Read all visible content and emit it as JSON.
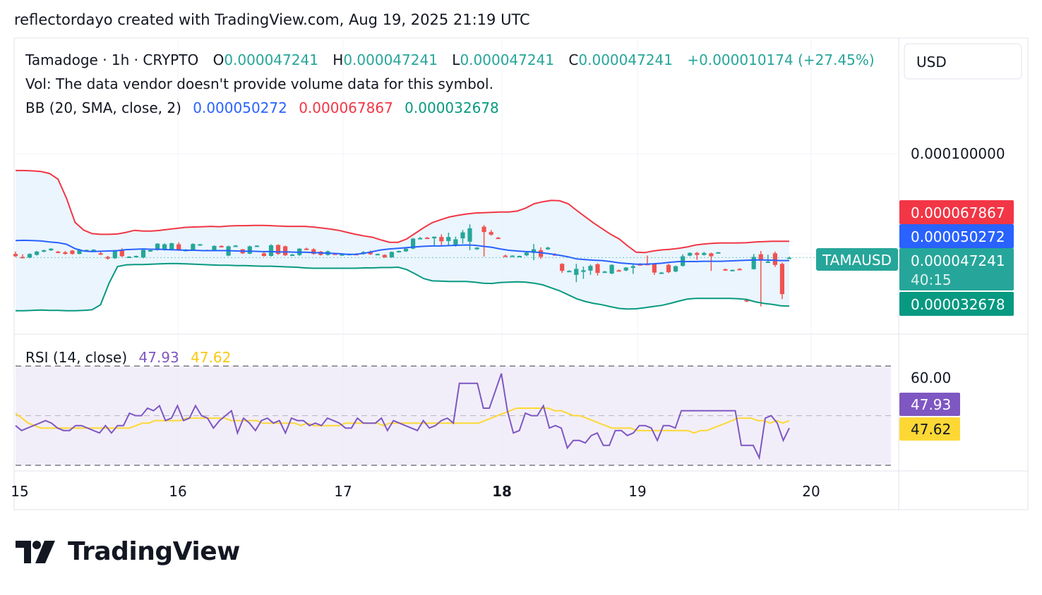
{
  "header": {
    "attribution": "reflectordayo created with TradingView.com, Aug 19, 2025 21:19 UTC"
  },
  "legend": {
    "symbol": "Tamadoge · 1h · CRYPTO",
    "o_label": "O",
    "o_value": "0.000047241",
    "h_label": "H",
    "h_value": "0.000047241",
    "l_label": "L",
    "l_value": "0.000047241",
    "c_label": "C",
    "c_value": "0.000047241",
    "change": "+0.000010174 (+27.45%)",
    "volume_note": "Vol: The data vendor doesn't provide volume data for this symbol.",
    "bb_label": "BB (20, SMA, close, 2)",
    "bb_basis": "0.000050272",
    "bb_upper": "0.000067867",
    "bb_lower": "0.000032678",
    "rsi_label": "RSI (14, close)",
    "rsi_value": "47.93",
    "rsi_ma_value": "47.62"
  },
  "price_axis": {
    "currency": "USD",
    "tick": "0.000100000",
    "upper_tag": "0.000067867",
    "basis_tag": "0.000050272",
    "price_tag": "0.000047241",
    "countdown": "40:15",
    "lower_tag": "0.000032678",
    "symbol_tag": "TAMAUSD"
  },
  "rsi_axis": {
    "tick": "60.00",
    "rsi_tag": "47.93",
    "ma_tag": "47.62"
  },
  "time_axis": {
    "labels": [
      "15",
      "16",
      "17",
      "18",
      "19",
      "20"
    ],
    "bold_label": "18"
  },
  "colors": {
    "up": "#26a69a",
    "down": "#ef5350",
    "basis": "#2962ff",
    "upper": "#f23645",
    "lower": "#089981",
    "band_fill": "#e3f2fd",
    "rsi": "#7e57c2",
    "rsi_ma": "#fdd835",
    "rsi_fill": "#ede7f6",
    "grid": "#f0f3fa"
  },
  "chart_data": {
    "type": "candlestick",
    "title": "Tamadoge · 1h · CRYPTO",
    "interval": "1h",
    "x_start": "Aug 15",
    "x_labels": [
      "15",
      "16",
      "17",
      "18",
      "19",
      "20"
    ],
    "price_unit": "USD",
    "price_ylim": [
      2.5e-05,
      0.000112
    ],
    "candles": [
      [
        4.83e-05,
        4.9e-05,
        4.74e-05,
        4.76e-05
      ],
      [
        4.74e-05,
        4.82e-05,
        4.7e-05,
        4.72e-05
      ],
      [
        4.72e-05,
        4.85e-05,
        4.7e-05,
        4.83e-05
      ],
      [
        4.8e-05,
        4.92e-05,
        4.78e-05,
        4.9e-05
      ],
      [
        4.9e-05,
        4.96e-05,
        4.88e-05,
        4.94e-05
      ],
      [
        4.94e-05,
        5e-05,
        4.92e-05,
        4.99e-05
      ],
      [
        4.9e-05,
        4.92e-05,
        4.85e-05,
        4.88e-05
      ],
      [
        4.88e-05,
        4.92e-05,
        4.81e-05,
        4.83e-05
      ],
      [
        4.93e-05,
        4.95e-05,
        4.81e-05,
        4.83e-05
      ],
      [
        4.83e-05,
        4.98e-05,
        4.82e-05,
        4.96e-05
      ],
      [
        4.94e-05,
        4.96e-05,
        4.93e-05,
        4.95e-05
      ],
      [
        4.94e-05,
        4.97e-05,
        4.93e-05,
        4.96e-05
      ],
      [
        4.85e-05,
        4.9e-05,
        4.8e-05,
        4.82e-05
      ],
      [
        4.74e-05,
        4.77e-05,
        4.66e-05,
        4.69e-05
      ],
      [
        4.7e-05,
        4.95e-05,
        4.68e-05,
        4.94e-05
      ],
      [
        4.93e-05,
        5e-05,
        4.74e-05,
        4.76e-05
      ],
      [
        4.74e-05,
        4.76e-05,
        4.72e-05,
        4.75e-05
      ],
      [
        4.75e-05,
        4.78e-05,
        4.74e-05,
        4.77e-05
      ],
      [
        4.72e-05,
        4.98e-05,
        4.7e-05,
        4.95e-05
      ],
      [
        4.93e-05,
        4.98e-05,
        4.91e-05,
        4.94e-05
      ],
      [
        4.95e-05,
        5.15e-05,
        4.93e-05,
        5.14e-05
      ],
      [
        4.95e-05,
        5.15e-05,
        4.93e-05,
        5.12e-05
      ],
      [
        4.95e-05,
        5.17e-05,
        4.93e-05,
        5.15e-05
      ],
      [
        5.12e-05,
        5.18e-05,
        4.92e-05,
        4.94e-05
      ],
      [
        4.94e-05,
        4.98e-05,
        4.92e-05,
        4.95e-05
      ],
      [
        4.96e-05,
        5.15e-05,
        4.94e-05,
        5.13e-05
      ],
      [
        5.11e-05,
        5.13e-05,
        5.09e-05,
        5.12e-05
      ],
      [
        4.93e-05,
        4.96e-05,
        4.91e-05,
        4.95e-05
      ],
      [
        4.95e-05,
        5.09e-05,
        4.93e-05,
        5.07e-05
      ],
      [
        5.07e-05,
        5.09e-05,
        5.05e-05,
        5.06e-05
      ],
      [
        4.78e-05,
        5.08e-05,
        4.76e-05,
        5.06e-05
      ],
      [
        5.06e-05,
        5.1e-05,
        5.04e-05,
        5.08e-05
      ],
      [
        4.97e-05,
        4.98e-05,
        4.83e-05,
        4.85e-05
      ],
      [
        4.84e-05,
        5.08e-05,
        4.82e-05,
        5.06e-05
      ],
      [
        5.06e-05,
        5.09e-05,
        5.04e-05,
        5.08e-05
      ],
      [
        4.85e-05,
        4.88e-05,
        4.75e-05,
        4.77e-05
      ],
      [
        4.77e-05,
        5.12e-05,
        4.75e-05,
        5.09e-05
      ],
      [
        5.1e-05,
        5.12e-05,
        4.8e-05,
        4.83e-05
      ],
      [
        5.06e-05,
        5.08e-05,
        4.77e-05,
        4.79e-05
      ],
      [
        4.8e-05,
        4.83e-05,
        4.78e-05,
        4.81e-05
      ],
      [
        4.8e-05,
        5e-05,
        4.77e-05,
        4.99e-05
      ],
      [
        4.99e-05,
        5.02e-05,
        4.96e-05,
        4.97e-05
      ],
      [
        4.97e-05,
        5e-05,
        4.81e-05,
        4.83e-05
      ],
      [
        4.9e-05,
        4.92e-05,
        4.78e-05,
        4.8e-05
      ],
      [
        4.8e-05,
        4.93e-05,
        4.78e-05,
        4.91e-05
      ],
      [
        4.84e-05,
        4.86e-05,
        4.81e-05,
        4.82e-05
      ],
      [
        4.81e-05,
        4.84e-05,
        4.79e-05,
        4.82e-05
      ],
      [
        4.82e-05,
        4.84e-05,
        4.8e-05,
        4.83e-05
      ],
      [
        4.83e-05,
        4.85e-05,
        4.81e-05,
        4.82e-05
      ],
      [
        4.83e-05,
        4.91e-05,
        4.81e-05,
        4.89e-05
      ],
      [
        4.9e-05,
        4.93e-05,
        4.8e-05,
        4.82e-05
      ],
      [
        4.82e-05,
        4.84e-05,
        4.8e-05,
        4.83e-05
      ],
      [
        4.8e-05,
        4.82e-05,
        4.71e-05,
        4.73e-05
      ],
      [
        4.73e-05,
        4.9e-05,
        4.71e-05,
        4.89e-05
      ],
      [
        4.89e-05,
        4.93e-05,
        4.87e-05,
        4.92e-05
      ],
      [
        4.91e-05,
        5e-05,
        4.89e-05,
        4.99e-05
      ],
      [
        4.99e-05,
        5.31e-05,
        4.97e-05,
        5.29e-05
      ],
      [
        5.3e-05,
        5.34e-05,
        5.28e-05,
        5.31e-05
      ],
      [
        5.32e-05,
        5.34e-05,
        5.3e-05,
        5.31e-05
      ],
      [
        5.3e-05,
        5.35e-05,
        5.07e-05,
        5.35e-05
      ],
      [
        5.34e-05,
        5.42e-05,
        5.09e-05,
        5.21e-05
      ],
      [
        5.22e-05,
        5.47e-05,
        5.08e-05,
        5.34e-05
      ],
      [
        5.07e-05,
        5.35e-05,
        5.05e-05,
        5.27e-05
      ],
      [
        5.3e-05,
        5.55e-05,
        5.14e-05,
        5.48e-05
      ],
      [
        5.2e-05,
        5.72e-05,
        4.94e-05,
        5.6e-05
      ],
      [
        4.97e-05,
        5.03e-05,
        4.95e-05,
        5.02e-05
      ],
      [
        5.65e-05,
        5.7e-05,
        4.75e-05,
        5.49e-05
      ],
      [
        5.49e-05,
        5.55e-05,
        5.38e-05,
        5.41e-05
      ],
      [
        5.32e-05,
        5.34e-05,
        5.3e-05,
        5.31e-05
      ],
      [
        4.78e-05,
        4.81e-05,
        4.75e-05,
        4.76e-05
      ],
      [
        4.77e-05,
        4.79e-05,
        4.75e-05,
        4.78e-05
      ],
      [
        4.76e-05,
        4.78e-05,
        4.74e-05,
        4.77e-05
      ],
      [
        4.79e-05,
        4.89e-05,
        4.76e-05,
        4.87e-05
      ],
      [
        4.86e-05,
        5.13e-05,
        4.64e-05,
        4.97e-05
      ],
      [
        4.94e-05,
        5.03e-05,
        4.68e-05,
        4.74e-05
      ],
      [
        4.97e-05,
        5.05e-05,
        4.95e-05,
        5.02e-05
      ],
      [
        4.82e-05,
        4.85e-05,
        4.78e-05,
        4.8e-05
      ],
      [
        4.53e-05,
        4.55e-05,
        4.26e-05,
        4.32e-05
      ],
      [
        4.31e-05,
        4.34e-05,
        4.29e-05,
        4.32e-05
      ],
      [
        4.2e-05,
        4.53e-05,
        3.98e-05,
        4.38e-05
      ],
      [
        4.29e-05,
        4.45e-05,
        4.08e-05,
        4.34e-05
      ],
      [
        4.33e-05,
        4.51e-05,
        4.2e-05,
        4.47e-05
      ],
      [
        4.52e-05,
        4.55e-05,
        4.18e-05,
        4.26e-05
      ],
      [
        4.28e-05,
        4.32e-05,
        4.26e-05,
        4.3e-05
      ],
      [
        4.24e-05,
        4.52e-05,
        4.22e-05,
        4.5e-05
      ],
      [
        4.34e-05,
        4.36e-05,
        4.31e-05,
        4.33e-05
      ],
      [
        4.33e-05,
        4.43e-05,
        4.31e-05,
        4.42e-05
      ],
      [
        4.41e-05,
        4.52e-05,
        4.23e-05,
        4.46e-05
      ],
      [
        4.52e-05,
        4.55e-05,
        4.49e-05,
        4.51e-05
      ],
      [
        4.53e-05,
        4.78e-05,
        4.49e-05,
        4.5e-05
      ],
      [
        4.52e-05,
        4.54e-05,
        4.2e-05,
        4.27e-05
      ],
      [
        4.26e-05,
        4.29e-05,
        4.25e-05,
        4.27e-05
      ],
      [
        4.5e-05,
        4.53e-05,
        4.25e-05,
        4.28e-05
      ],
      [
        4.3e-05,
        4.48e-05,
        4.28e-05,
        4.46e-05
      ],
      [
        4.47e-05,
        4.82e-05,
        4.45e-05,
        4.76e-05
      ],
      [
        4.78e-05,
        4.88e-05,
        4.76e-05,
        4.86e-05
      ],
      [
        4.86e-05,
        4.89e-05,
        4.65e-05,
        4.8e-05
      ],
      [
        4.8e-05,
        4.89e-05,
        4.78e-05,
        4.86e-05
      ],
      [
        4.85e-05,
        4.87e-05,
        4.32e-05,
        4.76e-05
      ],
      [
        4.87e-05,
        4.89e-05,
        4.85e-05,
        4.88e-05
      ],
      [
        4.37e-05,
        4.39e-05,
        4.34e-05,
        4.36e-05
      ],
      [
        4.34e-05,
        4.36e-05,
        4.31e-05,
        4.35e-05
      ],
      [
        4.38e-05,
        4.4e-05,
        4.35e-05,
        4.37e-05
      ],
      [
        3.44e-05,
        3.47e-05,
        3.38e-05,
        3.43e-05
      ],
      [
        4.37e-05,
        4.83e-05,
        4.36e-05,
        4.74e-05
      ],
      [
        4.82e-05,
        4.92e-05,
        3.25e-05,
        4.66e-05
      ],
      [
        4.58e-05,
        4.81e-05,
        4.56e-05,
        4.6e-05
      ],
      [
        4.85e-05,
        4.9e-05,
        4.44e-05,
        4.5e-05
      ],
      [
        4.53e-05,
        4.57e-05,
        3.47e-05,
        3.62e-05
      ],
      [
        4.72e-05,
        4.75e-05,
        4.72e-05,
        4.72e-05
      ]
    ],
    "bb_upper": [
      7.34e-05,
      7.34e-05,
      7.33e-05,
      7.31e-05,
      7.25e-05,
      7.08e-05,
      6.5e-05,
      5.78e-05,
      5.55e-05,
      5.44e-05,
      5.42e-05,
      5.42e-05,
      5.43e-05,
      5.48e-05,
      5.54e-05,
      5.52e-05,
      5.52e-05,
      5.54e-05,
      5.57e-05,
      5.6e-05,
      5.63e-05,
      5.64e-05,
      5.65e-05,
      5.66e-05,
      5.65e-05,
      5.67e-05,
      5.68e-05,
      5.68e-05,
      5.69e-05,
      5.69e-05,
      5.68e-05,
      5.67e-05,
      5.66e-05,
      5.66e-05,
      5.66e-05,
      5.64e-05,
      5.61e-05,
      5.58e-05,
      5.54e-05,
      5.48e-05,
      5.42e-05,
      5.37e-05,
      5.33e-05,
      5.25e-05,
      5.18e-05,
      5.18e-05,
      5.28e-05,
      5.45e-05,
      5.62e-05,
      5.77e-05,
      5.86e-05,
      5.94e-05,
      5.99e-05,
      6.03e-05,
      6.06e-05,
      6.07e-05,
      6.08e-05,
      6.09e-05,
      6.09e-05,
      6.12e-05,
      6.21e-05,
      6.34e-05,
      6.4e-05,
      6.44e-05,
      6.43e-05,
      6.34e-05,
      6.14e-05,
      5.95e-05,
      5.76e-05,
      5.59e-05,
      5.42e-05,
      5.28e-05,
      5.07e-05,
      4.88e-05,
      4.87e-05,
      4.92e-05,
      4.95e-05,
      4.97e-05,
      5e-05,
      5.04e-05,
      5.1e-05,
      5.13e-05,
      5.15e-05,
      5.16e-05,
      5.16e-05,
      5.16e-05,
      5.17e-05,
      5.19e-05,
      5.2e-05,
      5.21e-05,
      5.21e-05,
      5.21e-05
    ],
    "bb_basis": [
      5.23e-05,
      5.24e-05,
      5.23e-05,
      5.22e-05,
      5.19e-05,
      5.17e-05,
      5.12e-05,
      4.99e-05,
      4.92e-05,
      4.9e-05,
      4.91e-05,
      4.92e-05,
      4.93e-05,
      4.96e-05,
      4.97e-05,
      4.98e-05,
      4.97e-05,
      4.97e-05,
      4.96e-05,
      4.95e-05,
      4.94e-05,
      4.94e-05,
      4.93e-05,
      4.93e-05,
      4.93e-05,
      4.93e-05,
      4.92e-05,
      4.91e-05,
      4.91e-05,
      4.9e-05,
      4.9e-05,
      4.89e-05,
      4.89e-05,
      4.88e-05,
      4.88e-05,
      4.87e-05,
      4.86e-05,
      4.85e-05,
      4.84e-05,
      4.82e-05,
      4.82e-05,
      4.85e-05,
      4.9e-05,
      4.95e-05,
      4.98e-05,
      5e-05,
      5.02e-05,
      5.04e-05,
      5.06e-05,
      5.07e-05,
      5.07e-05,
      5.08e-05,
      5.09e-05,
      5.1e-05,
      5.09e-05,
      5.06e-05,
      5.03e-05,
      4.98e-05,
      4.94e-05,
      4.92e-05,
      4.9e-05,
      4.89e-05,
      4.86e-05,
      4.83e-05,
      4.79e-05,
      4.74e-05,
      4.68e-05,
      4.66e-05,
      4.64e-05,
      4.63e-05,
      4.6e-05,
      4.56e-05,
      4.54e-05,
      4.52e-05,
      4.52e-05,
      4.53e-05,
      4.55e-05,
      4.58e-05,
      4.6e-05,
      4.6e-05,
      4.6e-05,
      4.61e-05,
      4.61e-05,
      4.61e-05,
      4.62e-05,
      4.63e-05,
      4.64e-05,
      4.65e-05,
      4.65e-05,
      4.64e-05,
      4.63e-05,
      4.63e-05
    ],
    "bb_lower": [
      3.12e-05,
      3.12e-05,
      3.13e-05,
      3.14e-05,
      3.13e-05,
      3.13e-05,
      3.12e-05,
      3.12e-05,
      3.13e-05,
      3.15e-05,
      3.3e-05,
      3.95e-05,
      4.45e-05,
      4.5e-05,
      4.51e-05,
      4.51e-05,
      4.52e-05,
      4.53e-05,
      4.54e-05,
      4.54e-05,
      4.53e-05,
      4.52e-05,
      4.51e-05,
      4.5e-05,
      4.49e-05,
      4.49e-05,
      4.48e-05,
      4.48e-05,
      4.47e-05,
      4.46e-05,
      4.46e-05,
      4.45e-05,
      4.44e-05,
      4.43e-05,
      4.41e-05,
      4.4e-05,
      4.4e-05,
      4.4e-05,
      4.4e-05,
      4.4e-05,
      4.4e-05,
      4.41e-05,
      4.41e-05,
      4.42e-05,
      4.42e-05,
      4.43e-05,
      4.36e-05,
      4.23e-05,
      4.09e-05,
      4.02e-05,
      4.01e-05,
      4e-05,
      4e-05,
      4e-05,
      3.98e-05,
      3.95e-05,
      3.94e-05,
      3.97e-05,
      3.98e-05,
      3.99e-05,
      3.98e-05,
      3.95e-05,
      3.9e-05,
      3.81e-05,
      3.72e-05,
      3.6e-05,
      3.48e-05,
      3.4e-05,
      3.34e-05,
      3.3e-05,
      3.24e-05,
      3.19e-05,
      3.17e-05,
      3.18e-05,
      3.21e-05,
      3.25e-05,
      3.28e-05,
      3.34e-05,
      3.41e-05,
      3.47e-05,
      3.49e-05,
      3.49e-05,
      3.49e-05,
      3.49e-05,
      3.49e-05,
      3.48e-05,
      3.46e-05,
      3.39e-05,
      3.34e-05,
      3.31e-05,
      3.27e-05,
      3.26e-05
    ],
    "rsi_ylim": [
      30,
      80
    ],
    "rsi_levels": {
      "upper": 70,
      "middle": 50,
      "lower": 30
    },
    "rsi": [
      46,
      44,
      45,
      46,
      47,
      48,
      47,
      45,
      44,
      44,
      46,
      46,
      45,
      44,
      43,
      46,
      43,
      46,
      46,
      51,
      50,
      50,
      53,
      52,
      54,
      48,
      49,
      54,
      48,
      49,
      54,
      50,
      49,
      45,
      48,
      50,
      52,
      43,
      49,
      47,
      44,
      48,
      49,
      47,
      48,
      43,
      49,
      48,
      48,
      46,
      47,
      46,
      49,
      48,
      47,
      45,
      45,
      49,
      47,
      47,
      47,
      49,
      44,
      48,
      47,
      46,
      45,
      44,
      48,
      45,
      46,
      48,
      49,
      47,
      63,
      63,
      63,
      63,
      53,
      53,
      60,
      67,
      52,
      43,
      44,
      51,
      50,
      50,
      54,
      45,
      46,
      45,
      37,
      40,
      40,
      39,
      42,
      43,
      38,
      38,
      44,
      44,
      42,
      43,
      46,
      46,
      45,
      40,
      46,
      46,
      45,
      52,
      52,
      52,
      52,
      52,
      52,
      52,
      52,
      52,
      52,
      38,
      38,
      38,
      33,
      49,
      50,
      47,
      40,
      45
    ],
    "rsi_ma": [
      51,
      49,
      47,
      46,
      45,
      45,
      45,
      45,
      45,
      45,
      45,
      45,
      45,
      45,
      45,
      45,
      45,
      45,
      45,
      46,
      47,
      47,
      48,
      48,
      48,
      48,
      48,
      49,
      49,
      49,
      49,
      49,
      49,
      49,
      48,
      48,
      48,
      48,
      48,
      47,
      47,
      47,
      47,
      47,
      47,
      46,
      47,
      46,
      46,
      46,
      46,
      46,
      47,
      47,
      47,
      47,
      47,
      47,
      46,
      47,
      47,
      47,
      47,
      47,
      47,
      47,
      47,
      47,
      47,
      47,
      47,
      47,
      47,
      47,
      48,
      49,
      50,
      51,
      52,
      53,
      53,
      53,
      53,
      53,
      53,
      52,
      52,
      51,
      50,
      50,
      49,
      48,
      47,
      46,
      45,
      45,
      45,
      45,
      44,
      44,
      44,
      44,
      44,
      44,
      44,
      44,
      44,
      43,
      44,
      44,
      45,
      46,
      47,
      48,
      49,
      49,
      49,
      48,
      48,
      47,
      48,
      47,
      48
    ]
  }
}
